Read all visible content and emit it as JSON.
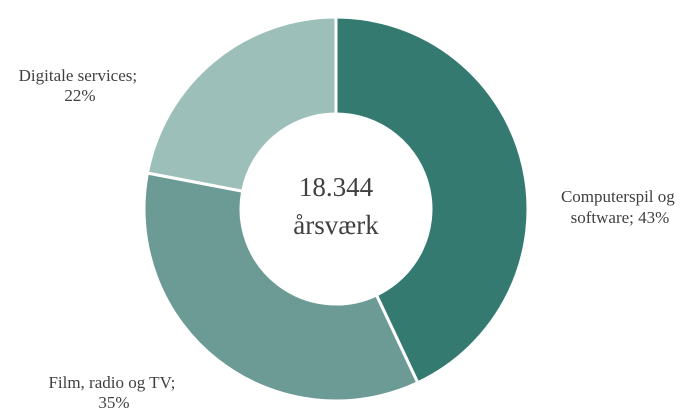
{
  "chart_data": {
    "type": "pie",
    "variant": "donut",
    "center_label": {
      "value": "18.344",
      "unit": "årsværk"
    },
    "slices": [
      {
        "name": "Computerspil og software",
        "value": 43,
        "label_line1": "Computerspil og",
        "label_line2": "software; 43%",
        "color": "#357a70"
      },
      {
        "name": "Film, radio og TV",
        "value": 35,
        "label_line1": "Film, radio og TV;",
        "label_line2": "35%",
        "color": "#6b9b94"
      },
      {
        "name": "Digitale services",
        "value": 22,
        "label_line1": "Digitale services;",
        "label_line2": "22%",
        "color": "#9dbfba"
      }
    ],
    "title": "",
    "legend": "none"
  }
}
